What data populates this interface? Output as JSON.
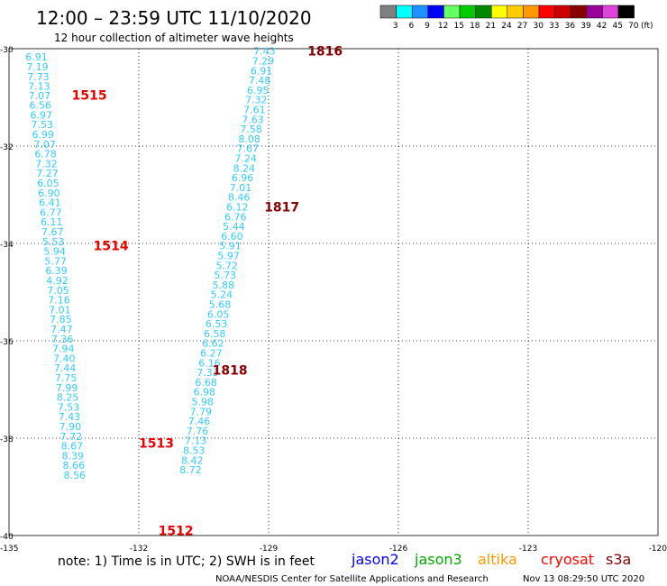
{
  "header": {
    "title": "12:00 – 23:59 UTC 11/10/2020",
    "subtitle": "12 hour collection of altimeter wave heights"
  },
  "legend": {
    "unit": "(ft)",
    "bins": [
      {
        "label": "3",
        "color": "#808080"
      },
      {
        "label": "6",
        "color": "#00ffff"
      },
      {
        "label": "9",
        "color": "#1e90ff"
      },
      {
        "label": "12",
        "color": "#0000ff"
      },
      {
        "label": "15",
        "color": "#66ff66"
      },
      {
        "label": "18",
        "color": "#00cc00"
      },
      {
        "label": "21",
        "color": "#008800"
      },
      {
        "label": "24",
        "color": "#ffff00"
      },
      {
        "label": "27",
        "color": "#ffcc00"
      },
      {
        "label": "30",
        "color": "#ff9900"
      },
      {
        "label": "33",
        "color": "#ff0000"
      },
      {
        "label": "36",
        "color": "#cc0000"
      },
      {
        "label": "39",
        "color": "#880000"
      },
      {
        "label": "42",
        "color": "#990099"
      },
      {
        "label": "45",
        "color": "#dd44dd"
      },
      {
        "label": "70",
        "color": "#000000"
      }
    ]
  },
  "footer": {
    "note": "note: 1) Time is in UTC; 2) SWH is in feet",
    "credit": "NOAA/NESDIS Center for Satellite Applications and Research",
    "timestamp": "Nov 13 08:29:50 UTC 2020",
    "satellites": [
      {
        "name": "jason2",
        "color": "#0000ff"
      },
      {
        "name": "jason3",
        "color": "#00aa00"
      },
      {
        "name": "altika",
        "color": "#ff9900"
      },
      {
        "name": "cryosat",
        "color": "#ff0000"
      },
      {
        "name": "s3a",
        "color": "#880000"
      }
    ]
  },
  "chart_data": {
    "type": "scatter",
    "title": "12:00 – 23:59 UTC 11/10/2020",
    "xlabel": "",
    "ylabel": "",
    "xlim": [
      -135,
      -120
    ],
    "ylim": [
      -40,
      -30
    ],
    "x_ticks": [
      "-135",
      "-132",
      "-129",
      "-126",
      "-123",
      "-120"
    ],
    "y_ticks": [
      "-30",
      "-32",
      "-34",
      "-36",
      "-38",
      "-40"
    ],
    "grid": true,
    "point_color": "#33ccff",
    "series": [
      {
        "name": "cryosat",
        "label_color": "#ee0000",
        "points": [
          {
            "x": -134.62,
            "y": -30.17,
            "v": "6.91"
          },
          {
            "x": -134.6,
            "y": -30.37,
            "v": "7.19"
          },
          {
            "x": -134.58,
            "y": -30.57,
            "v": "7.73"
          },
          {
            "x": -134.56,
            "y": -30.77,
            "v": "7.13"
          },
          {
            "x": -134.55,
            "y": -30.96,
            "v": "7.07"
          },
          {
            "x": -134.53,
            "y": -31.16,
            "v": "6.56"
          },
          {
            "x": -134.51,
            "y": -31.36,
            "v": "6.97"
          },
          {
            "x": -134.49,
            "y": -31.56,
            "v": "7.53"
          },
          {
            "x": -134.47,
            "y": -31.76,
            "v": "6.99"
          },
          {
            "x": -134.43,
            "y": -31.96,
            "v": "7.07"
          },
          {
            "x": -134.41,
            "y": -32.16,
            "v": "6.78"
          },
          {
            "x": -134.39,
            "y": -32.36,
            "v": "7.32"
          },
          {
            "x": -134.37,
            "y": -32.56,
            "v": "7.27"
          },
          {
            "x": -134.35,
            "y": -32.76,
            "v": "6.05"
          },
          {
            "x": -134.33,
            "y": -32.96,
            "v": "6.90"
          },
          {
            "x": -134.31,
            "y": -33.16,
            "v": "6.41"
          },
          {
            "x": -134.29,
            "y": -33.36,
            "v": "6.77"
          },
          {
            "x": -134.27,
            "y": -33.56,
            "v": "6.11"
          },
          {
            "x": -134.25,
            "y": -33.76,
            "v": "7.67"
          },
          {
            "x": -134.23,
            "y": -33.96,
            "v": "5.53"
          },
          {
            "x": -134.2,
            "y": -34.16,
            "v": "5.94"
          },
          {
            "x": -134.18,
            "y": -34.36,
            "v": "5.77"
          },
          {
            "x": -134.16,
            "y": -34.56,
            "v": "6.39"
          },
          {
            "x": -134.14,
            "y": -34.76,
            "v": "4.92"
          },
          {
            "x": -134.12,
            "y": -34.96,
            "v": "7.05"
          },
          {
            "x": -134.1,
            "y": -35.16,
            "v": "7.16"
          },
          {
            "x": -134.08,
            "y": -35.36,
            "v": "7.01"
          },
          {
            "x": -134.06,
            "y": -35.56,
            "v": "7.85"
          },
          {
            "x": -134.04,
            "y": -35.76,
            "v": "7.47"
          },
          {
            "x": -134.02,
            "y": -35.96,
            "v": "7.36"
          },
          {
            "x": -134.0,
            "y": -36.16,
            "v": "7.94"
          },
          {
            "x": -133.98,
            "y": -36.36,
            "v": "7.40"
          },
          {
            "x": -133.96,
            "y": -36.56,
            "v": "7.44"
          },
          {
            "x": -133.94,
            "y": -36.76,
            "v": "7.75"
          },
          {
            "x": -133.92,
            "y": -36.96,
            "v": "7.99"
          },
          {
            "x": -133.9,
            "y": -37.16,
            "v": "8.25"
          },
          {
            "x": -133.88,
            "y": -37.36,
            "v": "7.53"
          },
          {
            "x": -133.86,
            "y": -37.56,
            "v": "7.43"
          },
          {
            "x": -133.84,
            "y": -37.76,
            "v": "7.90"
          },
          {
            "x": -133.82,
            "y": -37.96,
            "v": "7.72"
          },
          {
            "x": -133.8,
            "y": -38.16,
            "v": "8.67"
          },
          {
            "x": -133.78,
            "y": -38.36,
            "v": "8.39"
          },
          {
            "x": -133.76,
            "y": -38.56,
            "v": "8.66"
          },
          {
            "x": -133.74,
            "y": -38.76,
            "v": "8.56"
          }
        ],
        "time_labels": [
          {
            "text": "1515",
            "x": -133.55,
            "y": -30.95
          },
          {
            "text": "1514",
            "x": -133.05,
            "y": -34.05
          },
          {
            "text": "1513",
            "x": -132.0,
            "y": -38.1
          },
          {
            "text": "1512",
            "x": -131.55,
            "y": -39.9
          }
        ]
      },
      {
        "name": "s3a",
        "label_color": "#880000",
        "points": [
          {
            "x": -129.35,
            "y": -30.05,
            "v": "7.43"
          },
          {
            "x": -129.38,
            "y": -30.25,
            "v": "7.29"
          },
          {
            "x": -129.42,
            "y": -30.45,
            "v": "6.91"
          },
          {
            "x": -129.46,
            "y": -30.65,
            "v": "7.48"
          },
          {
            "x": -129.5,
            "y": -30.85,
            "v": "6.95"
          },
          {
            "x": -129.54,
            "y": -31.05,
            "v": "7.32"
          },
          {
            "x": -129.58,
            "y": -31.25,
            "v": "7.61"
          },
          {
            "x": -129.62,
            "y": -31.45,
            "v": "7.63"
          },
          {
            "x": -129.66,
            "y": -31.65,
            "v": "7.58"
          },
          {
            "x": -129.7,
            "y": -31.85,
            "v": "8.08"
          },
          {
            "x": -129.74,
            "y": -32.05,
            "v": "7.67"
          },
          {
            "x": -129.78,
            "y": -32.25,
            "v": "7.24"
          },
          {
            "x": -129.82,
            "y": -32.45,
            "v": "8.24"
          },
          {
            "x": -129.86,
            "y": -32.65,
            "v": "6.96"
          },
          {
            "x": -129.9,
            "y": -32.85,
            "v": "7.01"
          },
          {
            "x": -129.94,
            "y": -33.05,
            "v": "8.46"
          },
          {
            "x": -129.98,
            "y": -33.25,
            "v": "6.12"
          },
          {
            "x": -130.02,
            "y": -33.45,
            "v": "6.76"
          },
          {
            "x": -130.06,
            "y": -33.65,
            "v": "5.44"
          },
          {
            "x": -130.1,
            "y": -33.85,
            "v": "6.60"
          },
          {
            "x": -130.14,
            "y": -34.05,
            "v": "5.91"
          },
          {
            "x": -130.18,
            "y": -34.25,
            "v": "5.97"
          },
          {
            "x": -130.22,
            "y": -34.45,
            "v": "5.72"
          },
          {
            "x": -130.26,
            "y": -34.65,
            "v": "5.73"
          },
          {
            "x": -130.3,
            "y": -34.85,
            "v": "5.88"
          },
          {
            "x": -130.34,
            "y": -35.05,
            "v": "5.24"
          },
          {
            "x": -130.38,
            "y": -35.25,
            "v": "5.68"
          },
          {
            "x": -130.42,
            "y": -35.45,
            "v": "6.05"
          },
          {
            "x": -130.46,
            "y": -35.65,
            "v": "6.53"
          },
          {
            "x": -130.5,
            "y": -35.85,
            "v": "6.58"
          },
          {
            "x": -130.54,
            "y": -36.05,
            "v": "6.62"
          },
          {
            "x": -130.58,
            "y": -36.25,
            "v": "6.27"
          },
          {
            "x": -130.62,
            "y": -36.45,
            "v": "6.16"
          },
          {
            "x": -130.66,
            "y": -36.65,
            "v": "7.33"
          },
          {
            "x": -130.7,
            "y": -36.85,
            "v": "6.68"
          },
          {
            "x": -130.74,
            "y": -37.05,
            "v": "6.98"
          },
          {
            "x": -130.78,
            "y": -37.25,
            "v": "5.98"
          },
          {
            "x": -130.82,
            "y": -37.45,
            "v": "7.79"
          },
          {
            "x": -130.86,
            "y": -37.65,
            "v": "7.46"
          },
          {
            "x": -130.9,
            "y": -37.85,
            "v": "7.76"
          },
          {
            "x": -130.94,
            "y": -38.05,
            "v": "7.13"
          },
          {
            "x": -130.98,
            "y": -38.25,
            "v": "8.53"
          },
          {
            "x": -131.02,
            "y": -38.45,
            "v": "8.42"
          },
          {
            "x": -131.06,
            "y": -38.65,
            "v": "8.72"
          }
        ],
        "time_labels": [
          {
            "text": "1816",
            "x": -128.1,
            "y": -30.05
          },
          {
            "text": "1817",
            "x": -129.1,
            "y": -33.25
          },
          {
            "text": "1818",
            "x": -130.3,
            "y": -36.6
          }
        ]
      }
    ]
  }
}
